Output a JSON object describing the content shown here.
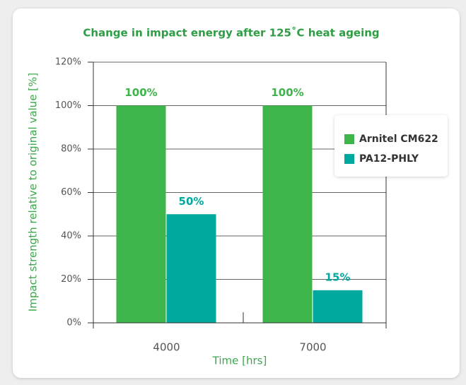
{
  "chart_data": {
    "type": "bar",
    "title": "Change in impact energy after 125˚C heat ageing",
    "x_label": "Time [hrs]",
    "y_label": "Impact strength relative to original value [%]",
    "categories": [
      "4000",
      "7000"
    ],
    "series": [
      {
        "name": "Arnitel CM622",
        "color": "#3db54a",
        "values": [
          100,
          100
        ],
        "value_labels": [
          "100%",
          "100%"
        ]
      },
      {
        "name": "PA12-PHLY",
        "color": "#00a99d",
        "values": [
          50,
          15
        ],
        "value_labels": [
          "50%",
          "15%"
        ]
      }
    ],
    "ylim": [
      0,
      120
    ],
    "yticks": [
      {
        "value": 0,
        "label": "0%"
      },
      {
        "value": 20,
        "label": "20%"
      },
      {
        "value": 40,
        "label": "40%"
      },
      {
        "value": 60,
        "label": "60%"
      },
      {
        "value": 80,
        "label": "80%"
      },
      {
        "value": 100,
        "label": "100%"
      },
      {
        "value": 120,
        "label": "120%"
      }
    ],
    "grid": true
  }
}
